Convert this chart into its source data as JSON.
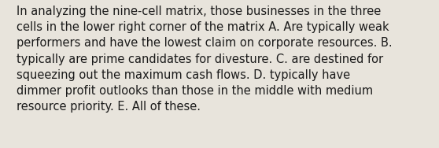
{
  "lines": [
    "In analyzing the nine-cell matrix, those businesses in the three",
    "cells in the lower right corner of the matrix A. Are typically weak",
    "performers and have the lowest claim on corporate resources. B.",
    "typically are prime candidates for divesture. C. are destined for",
    "squeezing out the maximum cash flows. D. typically have",
    "dimmer profit outlooks than those in the middle with medium",
    "resource priority. E. All of these."
  ],
  "background_color": "#e8e4dc",
  "text_color": "#1a1a1a",
  "font_size": 10.5,
  "font_family": "DejaVu Sans",
  "fig_width": 5.58,
  "fig_height": 1.88,
  "dpi": 100
}
